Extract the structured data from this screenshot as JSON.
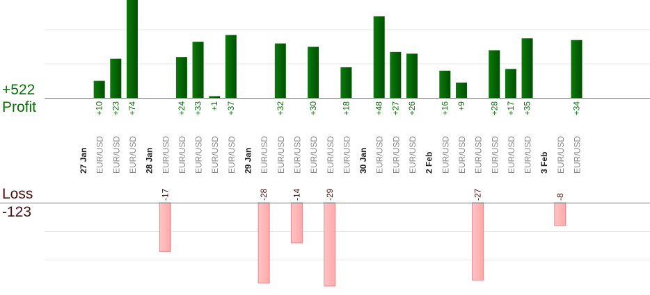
{
  "summary": {
    "profit_total": "+522",
    "profit_label": "Profit",
    "loss_label": "Loss",
    "loss_total": "-123"
  },
  "colors": {
    "profit_bar_dark": "#004f00",
    "profit_bar_light": "#0b7a0b",
    "profit_text": "#0a6e0a",
    "loss_bar_fill": "#ffb3b3",
    "loss_bar_stroke": "#e08c8c",
    "loss_text": "#4a0f0f",
    "grid": "#e8e8e8",
    "axis": "#777777",
    "pair_text": "#888888",
    "date_text": "#222222"
  },
  "chart_data": {
    "type": "bar",
    "title": "",
    "ylabel": "",
    "profit_axis_max": 60,
    "loss_axis_max": 28,
    "profit_grid_values": [
      20,
      40
    ],
    "loss_grid_values": [
      10,
      20
    ],
    "grid": true,
    "categories": [
      {
        "type": "date",
        "label": "27 Jan"
      },
      {
        "type": "trade",
        "label": "EUR/USD",
        "value": 10
      },
      {
        "type": "trade",
        "label": "EUR/USD",
        "value": 23
      },
      {
        "type": "trade",
        "label": "EUR/USD",
        "value": 74
      },
      {
        "type": "date",
        "label": "28 Jan"
      },
      {
        "type": "trade",
        "label": "EUR/USD",
        "value": -17
      },
      {
        "type": "trade",
        "label": "EUR/USD",
        "value": 24
      },
      {
        "type": "trade",
        "label": "EUR/USD",
        "value": 33
      },
      {
        "type": "trade",
        "label": "EUR/USD",
        "value": 1
      },
      {
        "type": "trade",
        "label": "EUR/USD",
        "value": 37
      },
      {
        "type": "date",
        "label": "29 Jan"
      },
      {
        "type": "trade",
        "label": "EUR/USD",
        "value": -28
      },
      {
        "type": "trade",
        "label": "EUR/USD",
        "value": 32
      },
      {
        "type": "trade",
        "label": "EUR/USD",
        "value": -14
      },
      {
        "type": "trade",
        "label": "EUR/USD",
        "value": 30
      },
      {
        "type": "trade",
        "label": "EUR/USD",
        "value": -29
      },
      {
        "type": "trade",
        "label": "EUR/USD",
        "value": 18
      },
      {
        "type": "date",
        "label": "30 Jan"
      },
      {
        "type": "trade",
        "label": "EUR/USD",
        "value": 48
      },
      {
        "type": "trade",
        "label": "EUR/USD",
        "value": 27
      },
      {
        "type": "trade",
        "label": "EUR/USD",
        "value": 26
      },
      {
        "type": "date",
        "label": "2 Feb"
      },
      {
        "type": "trade",
        "label": "EUR/USD",
        "value": 16
      },
      {
        "type": "trade",
        "label": "EUR/USD",
        "value": 9
      },
      {
        "type": "trade",
        "label": "EUR/USD",
        "value": -27
      },
      {
        "type": "trade",
        "label": "EUR/USD",
        "value": 28
      },
      {
        "type": "trade",
        "label": "EUR/USD",
        "value": 17
      },
      {
        "type": "trade",
        "label": "EUR/USD",
        "value": 35
      },
      {
        "type": "date",
        "label": "3 Feb"
      },
      {
        "type": "trade",
        "label": "EUR/USD",
        "value": -8
      },
      {
        "type": "trade",
        "label": "EUR/USD",
        "value": 34
      }
    ]
  }
}
